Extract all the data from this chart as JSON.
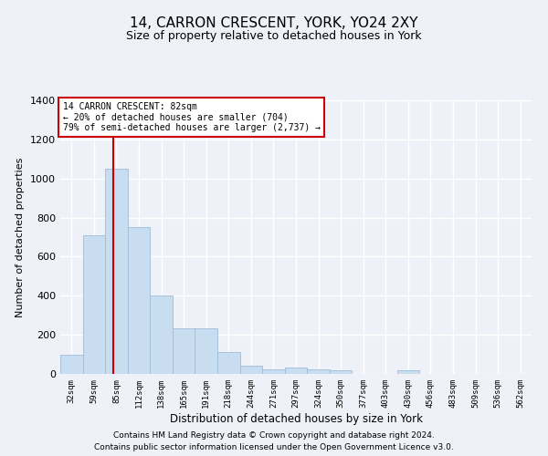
{
  "title": "14, CARRON CRESCENT, YORK, YO24 2XY",
  "subtitle": "Size of property relative to detached houses in York",
  "xlabel": "Distribution of detached houses by size in York",
  "ylabel": "Number of detached properties",
  "footnote1": "Contains HM Land Registry data © Crown copyright and database right 2024.",
  "footnote2": "Contains public sector information licensed under the Open Government Licence v3.0.",
  "annotation_line1": "14 CARRON CRESCENT: 82sqm",
  "annotation_line2": "← 20% of detached houses are smaller (704)",
  "annotation_line3": "79% of semi-detached houses are larger (2,737) →",
  "bar_color": "#c9ddf0",
  "bar_edge_color": "#9dbbd8",
  "vline_color": "#cc0000",
  "categories": [
    "32sqm",
    "59sqm",
    "85sqm",
    "112sqm",
    "138sqm",
    "165sqm",
    "191sqm",
    "218sqm",
    "244sqm",
    "271sqm",
    "297sqm",
    "324sqm",
    "350sqm",
    "377sqm",
    "403sqm",
    "430sqm",
    "456sqm",
    "483sqm",
    "509sqm",
    "536sqm",
    "562sqm"
  ],
  "values": [
    100,
    710,
    1050,
    750,
    400,
    235,
    235,
    110,
    40,
    22,
    32,
    22,
    18,
    0,
    0,
    18,
    0,
    0,
    0,
    0,
    0
  ],
  "vline_pos": 1.87,
  "ylim": [
    0,
    1400
  ],
  "yticks": [
    0,
    200,
    400,
    600,
    800,
    1000,
    1200,
    1400
  ],
  "background_color": "#eef2f8",
  "plot_bg_color": "#eef2f8",
  "grid_color": "#ffffff",
  "title_fontsize": 11,
  "subtitle_fontsize": 9
}
